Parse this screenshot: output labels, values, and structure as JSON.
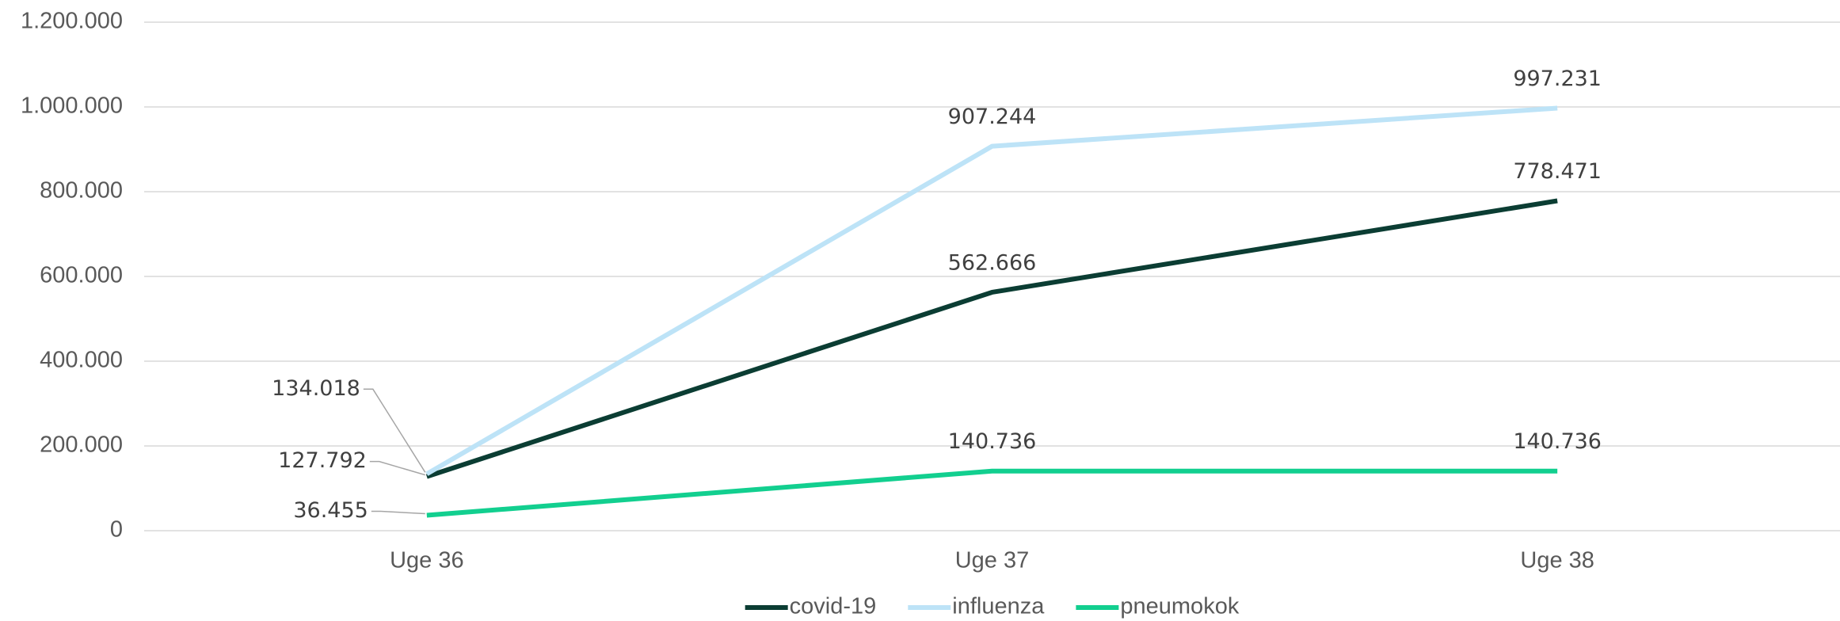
{
  "chart_data": {
    "type": "line",
    "categories": [
      "Uge 36",
      "Uge 37",
      "Uge 38"
    ],
    "series": [
      {
        "name": "covid-19",
        "color": "#0b3d33",
        "values": [
          127792,
          562666,
          778471
        ],
        "value_labels": [
          "127.792",
          "562.666",
          "778.471"
        ]
      },
      {
        "name": "influenza",
        "color": "#bde3f7",
        "values": [
          134018,
          907244,
          997231
        ],
        "value_labels": [
          "134.018",
          "907.244",
          "997.231"
        ]
      },
      {
        "name": "pneumokok",
        "color": "#12cf8f",
        "values": [
          36455,
          140736,
          140736
        ],
        "value_labels": [
          "36.455",
          "140.736",
          "140.736"
        ]
      }
    ],
    "ylim": [
      0,
      1200000
    ],
    "yticks": [
      0,
      {
        "value": 200000,
        "label": "200.000"
      },
      {
        "value": 400000,
        "label": "400.000"
      },
      {
        "value": 600000,
        "label": "600.000"
      },
      {
        "value": 800000,
        "label": "800.000"
      },
      {
        "value": 1000000,
        "label": "1.000.000"
      },
      {
        "value": 1200000,
        "label": "1.200.000"
      }
    ],
    "grid": true,
    "legend": "bottom"
  }
}
